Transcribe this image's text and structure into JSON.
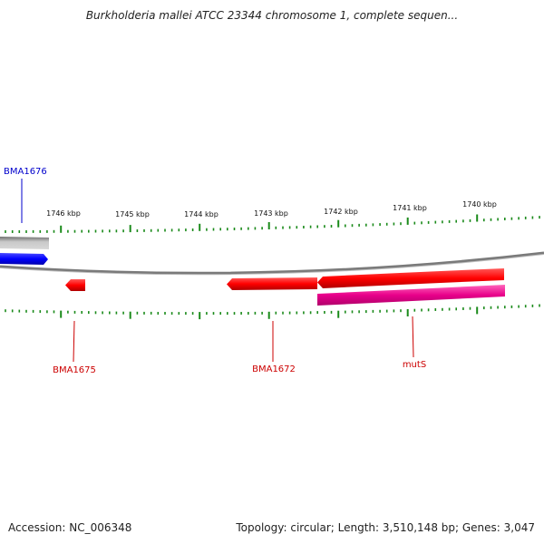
{
  "title": "Burkholderia mallei ATCC 23344 chromosome 1, complete sequen...",
  "ruler_labels": [
    "1746 kbp",
    "1745 kbp",
    "1744 kbp",
    "1743 kbp",
    "1742 kbp",
    "1741 kbp",
    "1740 kbp"
  ],
  "genes": [
    {
      "name": "BMA1676",
      "color": "#0000cc",
      "strand": "forward"
    },
    {
      "name": "BMA1675",
      "color": "#cc0000",
      "strand": "reverse"
    },
    {
      "name": "BMA1672",
      "color": "#cc0000",
      "strand": "reverse"
    },
    {
      "name": "mutS",
      "color": "#cc0000",
      "strand": "reverse"
    }
  ],
  "feature_colors": {
    "forward_cds": "#0000ff",
    "reverse_cds": "#ff0000",
    "rna_or_other": "#e0007a",
    "grey_feature": "#b8b8b8",
    "backbone": "#808080",
    "ticks": "#1a8a1a"
  },
  "footer": {
    "accession": "Accession: NC_006348",
    "summary": "Topology: circular; Length: 3,510,148 bp; Genes: 3,047"
  }
}
